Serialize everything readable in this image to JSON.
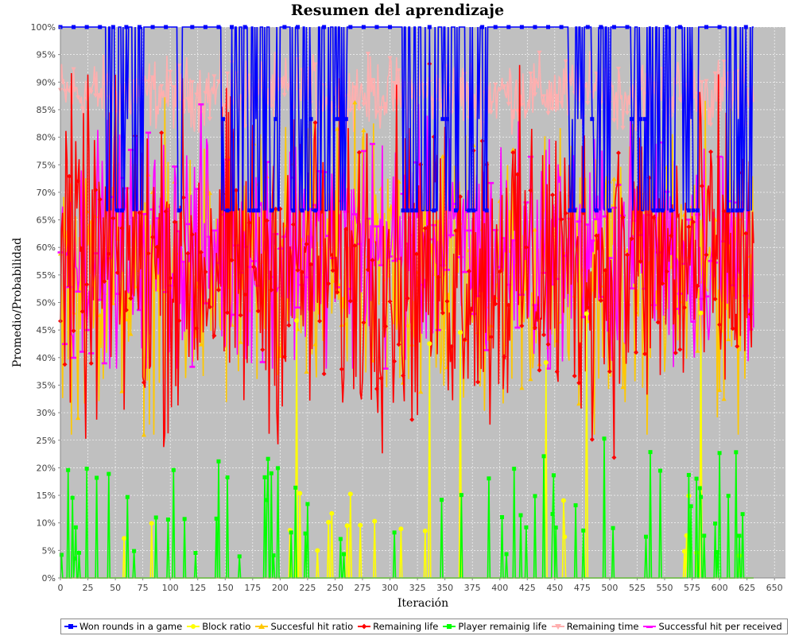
{
  "chart_data": {
    "type": "line",
    "title": "Resumen del aprendizaje",
    "xlabel": "Iteración",
    "ylabel": "Promedio/Probabilidad",
    "xlim": [
      0,
      660
    ],
    "ylim": [
      0,
      100
    ],
    "x_ticks": [
      "0",
      "25",
      "50",
      "75",
      "100",
      "125",
      "150",
      "175",
      "200",
      "225",
      "250",
      "275",
      "300",
      "325",
      "350",
      "375",
      "400",
      "425",
      "450",
      "475",
      "500",
      "525",
      "550",
      "575",
      "600",
      "625",
      "650"
    ],
    "y_ticks": [
      "0%",
      "5%",
      "10%",
      "15%",
      "20%",
      "25%",
      "30%",
      "35%",
      "40%",
      "45%",
      "50%",
      "55%",
      "60%",
      "65%",
      "70%",
      "75%",
      "80%",
      "85%",
      "90%",
      "95%",
      "100%"
    ],
    "grid": true,
    "legend_position": "bottom",
    "background": "#c0c0c0",
    "n_points": 632,
    "note": "approximate visual reconstruction of dense noisy series",
    "series": [
      {
        "name": "Won rounds in a game",
        "color": "#0000ff",
        "marker": "square",
        "summary": {
          "typical": 100,
          "dips_to": [
            83.3,
            66.7
          ],
          "range": [
            66.7,
            100
          ]
        }
      },
      {
        "name": "Block ratio",
        "color": "#ffff00",
        "marker": "circle",
        "summary": {
          "typical": 0,
          "spikes_to": [
            5,
            8,
            10,
            12.5,
            16.7,
            50
          ],
          "range": [
            0,
            50
          ]
        }
      },
      {
        "name": "Succesful hit ratio",
        "color": "#ffc800",
        "marker": "triangle-up",
        "summary": {
          "mean": 55,
          "range": [
            26,
            94
          ]
        }
      },
      {
        "name": "Remaining life",
        "color": "#ff0000",
        "marker": "diamond",
        "summary": {
          "mean": 57,
          "range": [
            17,
            95
          ]
        }
      },
      {
        "name": "Player remainig life",
        "color": "#00ff00",
        "marker": "square",
        "summary": {
          "typical": 0,
          "spikes_to": [
            5,
            10,
            15,
            20,
            25.6
          ],
          "range": [
            0,
            25.6
          ]
        }
      },
      {
        "name": "Remaining time",
        "color": "#ffafaf",
        "marker": "triangle-down",
        "summary": {
          "mean": 88,
          "range": [
            79,
            96
          ]
        }
      },
      {
        "name": "Successful hit per received",
        "color": "#ff00ff",
        "marker": "dash",
        "summary": {
          "mean": 60,
          "range": [
            38,
            95
          ]
        }
      }
    ]
  }
}
